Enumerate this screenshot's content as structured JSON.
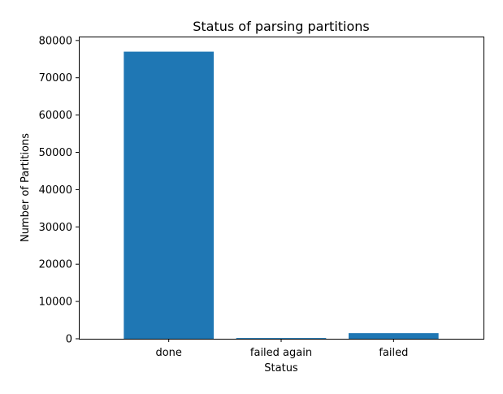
{
  "chart_data": {
    "type": "bar",
    "title": "Status of parsing partitions",
    "xlabel": "Status",
    "ylabel": "Number of Partitions",
    "categories": [
      "done",
      "failed again",
      "failed"
    ],
    "values": [
      77000,
      200,
      1500
    ],
    "ylim": [
      0,
      80000
    ],
    "yticks": [
      0,
      10000,
      20000,
      30000,
      40000,
      50000,
      60000,
      70000,
      80000
    ],
    "grid": false,
    "legend": "none",
    "bar_color": "#1f77b4"
  }
}
